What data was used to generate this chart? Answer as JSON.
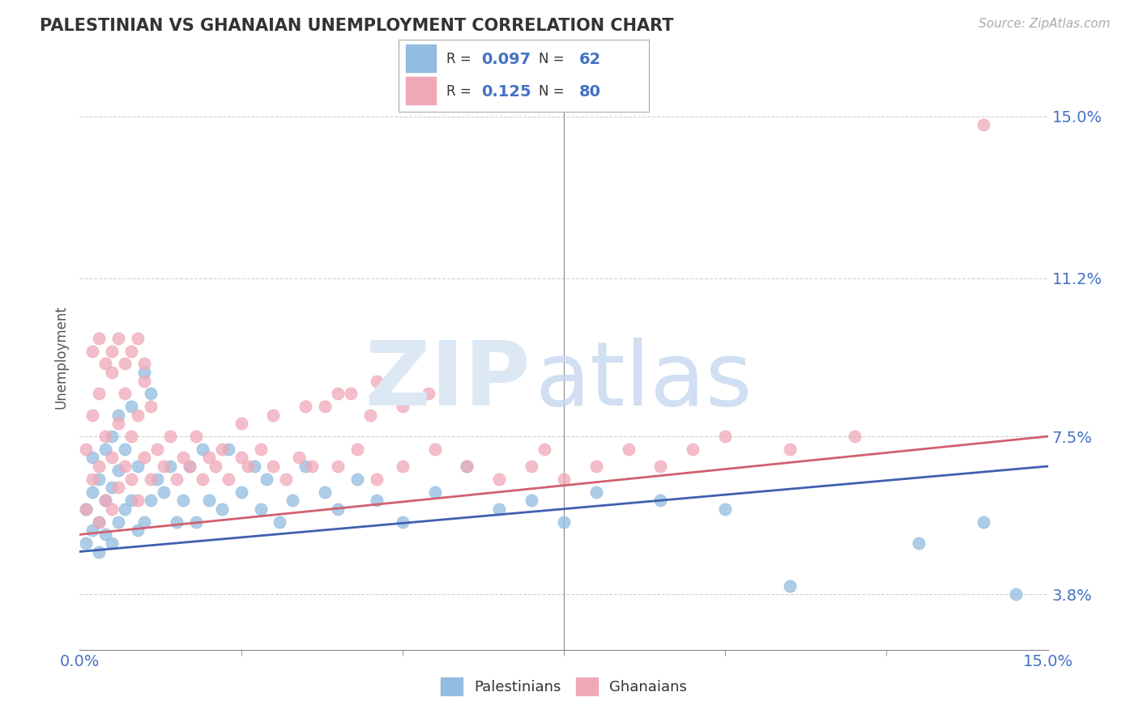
{
  "title": "PALESTINIAN VS GHANAIAN UNEMPLOYMENT CORRELATION CHART",
  "source_text": "Source: ZipAtlas.com",
  "ylabel": "Unemployment",
  "xlim": [
    0.0,
    0.15
  ],
  "ylim": [
    0.025,
    0.162
  ],
  "yticks": [
    0.038,
    0.075,
    0.112,
    0.15
  ],
  "ytick_labels": [
    "3.8%",
    "7.5%",
    "11.2%",
    "15.0%"
  ],
  "xtick_labels": [
    "0.0%",
    "15.0%"
  ],
  "grid_color": "#d0d0d0",
  "background_color": "#ffffff",
  "palestinians_color": "#92bce0",
  "ghanaians_color": "#f0a8b8",
  "trend_blue_color": "#4060b0",
  "trend_pink_color": "#d06070",
  "legend_R_blue": "0.097",
  "legend_N_blue": "62",
  "legend_R_pink": "0.125",
  "legend_N_pink": "80",
  "legend_label_blue": "Palestinians",
  "legend_label_pink": "Ghanaians",
  "trend_blue_start": 0.048,
  "trend_blue_end": 0.068,
  "trend_pink_start": 0.052,
  "trend_pink_end": 0.075,
  "palestinians_x": [
    0.001,
    0.001,
    0.002,
    0.002,
    0.002,
    0.003,
    0.003,
    0.003,
    0.004,
    0.004,
    0.004,
    0.005,
    0.005,
    0.005,
    0.006,
    0.006,
    0.006,
    0.007,
    0.007,
    0.008,
    0.008,
    0.009,
    0.009,
    0.01,
    0.01,
    0.011,
    0.011,
    0.012,
    0.013,
    0.014,
    0.015,
    0.016,
    0.017,
    0.018,
    0.019,
    0.02,
    0.022,
    0.023,
    0.025,
    0.027,
    0.028,
    0.029,
    0.031,
    0.033,
    0.035,
    0.038,
    0.04,
    0.043,
    0.046,
    0.05,
    0.055,
    0.06,
    0.065,
    0.07,
    0.075,
    0.08,
    0.09,
    0.1,
    0.11,
    0.13,
    0.14,
    0.145
  ],
  "palestinians_y": [
    0.05,
    0.058,
    0.053,
    0.062,
    0.07,
    0.048,
    0.055,
    0.065,
    0.052,
    0.06,
    0.072,
    0.05,
    0.063,
    0.075,
    0.055,
    0.067,
    0.08,
    0.058,
    0.072,
    0.06,
    0.082,
    0.053,
    0.068,
    0.055,
    0.09,
    0.06,
    0.085,
    0.065,
    0.062,
    0.068,
    0.055,
    0.06,
    0.068,
    0.055,
    0.072,
    0.06,
    0.058,
    0.072,
    0.062,
    0.068,
    0.058,
    0.065,
    0.055,
    0.06,
    0.068,
    0.062,
    0.058,
    0.065,
    0.06,
    0.055,
    0.062,
    0.068,
    0.058,
    0.06,
    0.055,
    0.062,
    0.06,
    0.058,
    0.04,
    0.05,
    0.055,
    0.038
  ],
  "ghanaians_x": [
    0.001,
    0.001,
    0.002,
    0.002,
    0.003,
    0.003,
    0.003,
    0.004,
    0.004,
    0.005,
    0.005,
    0.005,
    0.006,
    0.006,
    0.007,
    0.007,
    0.008,
    0.008,
    0.009,
    0.009,
    0.01,
    0.01,
    0.011,
    0.011,
    0.012,
    0.013,
    0.014,
    0.015,
    0.016,
    0.017,
    0.018,
    0.019,
    0.02,
    0.021,
    0.022,
    0.023,
    0.025,
    0.026,
    0.028,
    0.03,
    0.032,
    0.034,
    0.036,
    0.04,
    0.043,
    0.046,
    0.05,
    0.055,
    0.06,
    0.065,
    0.07,
    0.072,
    0.075,
    0.08,
    0.085,
    0.09,
    0.095,
    0.1,
    0.11,
    0.12,
    0.025,
    0.03,
    0.035,
    0.04,
    0.045,
    0.038,
    0.042,
    0.046,
    0.05,
    0.054,
    0.002,
    0.003,
    0.004,
    0.005,
    0.006,
    0.007,
    0.008,
    0.009,
    0.01,
    0.14
  ],
  "ghanaians_y": [
    0.058,
    0.072,
    0.065,
    0.08,
    0.055,
    0.068,
    0.085,
    0.06,
    0.075,
    0.058,
    0.07,
    0.09,
    0.063,
    0.078,
    0.068,
    0.085,
    0.065,
    0.075,
    0.06,
    0.08,
    0.07,
    0.088,
    0.065,
    0.082,
    0.072,
    0.068,
    0.075,
    0.065,
    0.07,
    0.068,
    0.075,
    0.065,
    0.07,
    0.068,
    0.072,
    0.065,
    0.07,
    0.068,
    0.072,
    0.068,
    0.065,
    0.07,
    0.068,
    0.068,
    0.072,
    0.065,
    0.068,
    0.072,
    0.068,
    0.065,
    0.068,
    0.072,
    0.065,
    0.068,
    0.072,
    0.068,
    0.072,
    0.075,
    0.072,
    0.075,
    0.078,
    0.08,
    0.082,
    0.085,
    0.08,
    0.082,
    0.085,
    0.088,
    0.082,
    0.085,
    0.095,
    0.098,
    0.092,
    0.095,
    0.098,
    0.092,
    0.095,
    0.098,
    0.092,
    0.148
  ]
}
